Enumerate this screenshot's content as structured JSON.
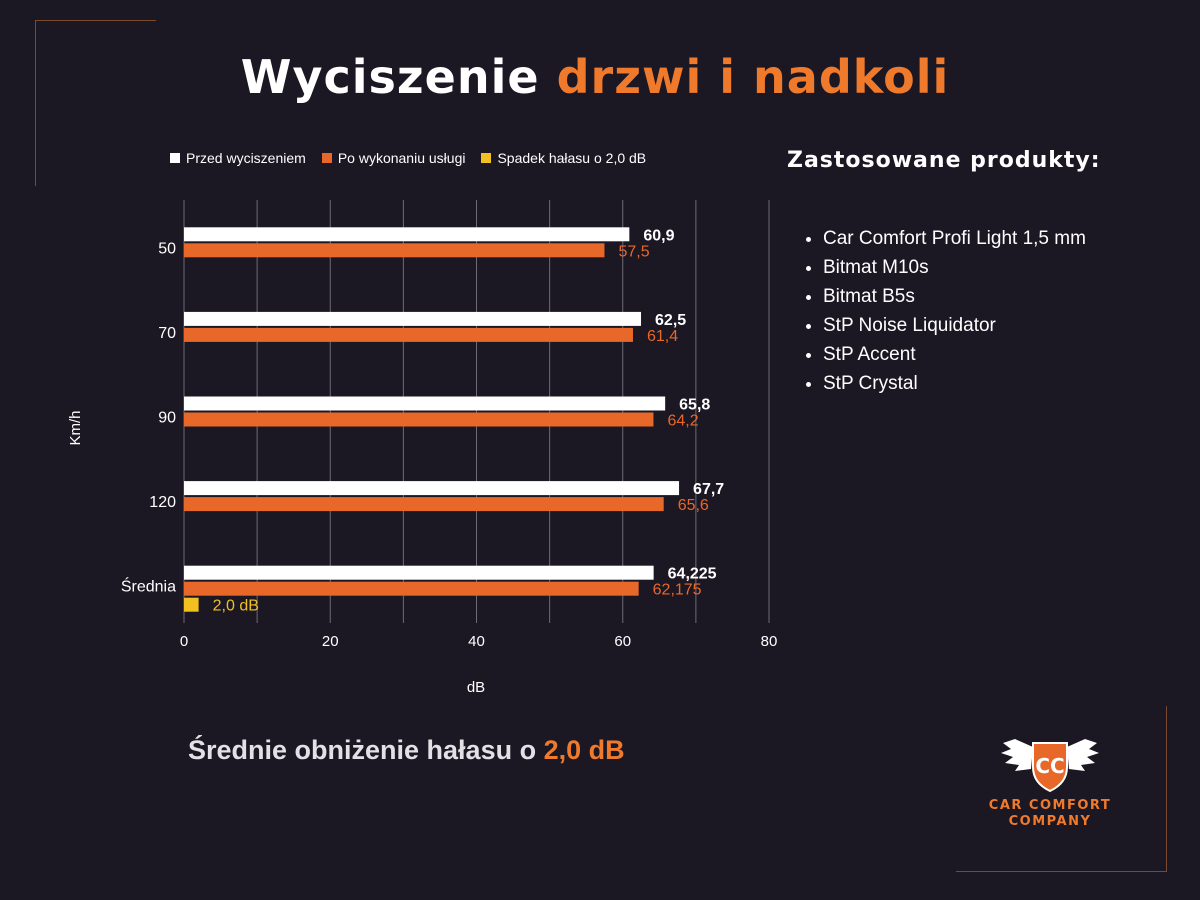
{
  "title": {
    "part1": "Wyciszenie",
    "part2": "drzwi i nadkoli"
  },
  "chart_data": {
    "type": "bar",
    "orientation": "horizontal",
    "categories": [
      "50",
      "70",
      "90",
      "120",
      "Średnia"
    ],
    "series": [
      {
        "name": "Przed wyciszeniem",
        "color": "#ffffff",
        "values": [
          60.9,
          62.5,
          65.8,
          67.7,
          64.225
        ],
        "labels": [
          "60,9",
          "62,5",
          "65,8",
          "67,7",
          "64,225"
        ]
      },
      {
        "name": "Po wykonaniu usługi",
        "color": "#e8682a",
        "values": [
          57.5,
          61.4,
          64.2,
          65.6,
          62.175
        ],
        "labels": [
          "57,5",
          "61,4",
          "64,2",
          "65,6",
          "62,175"
        ]
      },
      {
        "name": "Spadek hałasu o 2,0 dB",
        "color": "#f2c021",
        "values": [
          null,
          null,
          null,
          null,
          2.0
        ],
        "labels": [
          "",
          "",
          "",
          "",
          "2,0 dB"
        ]
      }
    ],
    "xlim": [
      0,
      80
    ],
    "x_ticks": [
      "0",
      "20",
      "40",
      "60",
      "80"
    ],
    "xlabel": "dB",
    "ylabel": "Km/h",
    "grid": true,
    "legend_position": "top"
  },
  "products": {
    "title": "Zastosowane produkty:",
    "items": [
      "Car Comfort Profi Light 1,5 mm",
      "Bitmat M10s",
      "Bitmat B5s",
      "StP Noise Liquidator",
      "StP Accent",
      "StP Crystal"
    ]
  },
  "summary": {
    "text": "Średnie obniżenie hałasu o",
    "value": "2,0 dB"
  },
  "logo": {
    "monogram": "CC",
    "line1": "CAR COMFORT",
    "line2": "COMPANY"
  }
}
